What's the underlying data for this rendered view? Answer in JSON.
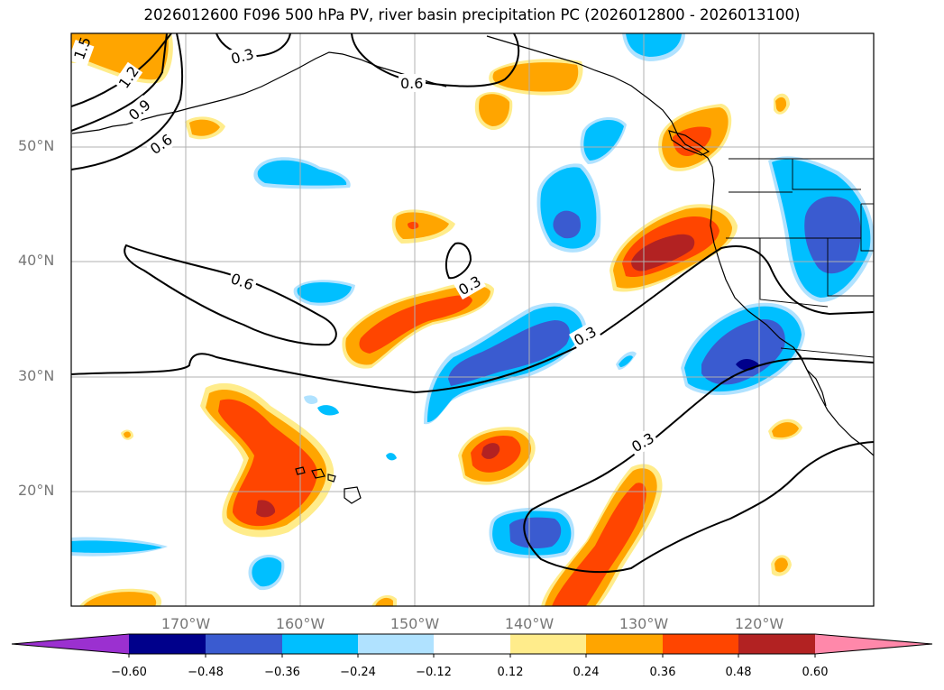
{
  "title": "2026012600 F096 500 hPa PV, river basin precipitation PC (2026012800 - 2026013100)",
  "lat_labels": [
    "50°N",
    "40°N",
    "30°N",
    "20°N"
  ],
  "lon_labels": [
    "170°W",
    "160°W",
    "150°W",
    "140°W",
    "130°W",
    "120°W"
  ],
  "contour_labels": [
    "1.5",
    "1.2",
    "0.9",
    "0.6",
    "0.3",
    "0.6",
    "0.6",
    "0.3",
    "0.3",
    "0.3"
  ],
  "colorbar": {
    "ticks": [
      "−0.60",
      "−0.48",
      "−0.36",
      "−0.24",
      "−0.12",
      "0.12",
      "0.24",
      "0.36",
      "0.48",
      "0.60"
    ],
    "colors": [
      "#9b30d0",
      "#00008b",
      "#3a5bd0",
      "#00bfff",
      "#b0e2ff",
      "#ffffff",
      "#ffec8b",
      "#ffa500",
      "#ff4500",
      "#b22222",
      "#ff88aa"
    ]
  },
  "colors": {
    "dark_red": "#b22222",
    "red_orange": "#ff4500",
    "orange": "#ffa500",
    "light_yellow": "#ffec8b",
    "light_blue": "#b0e2ff",
    "deep_sky_blue": "#00bfff",
    "royal_blue": "#3a5bd0",
    "navy": "#00008b"
  }
}
